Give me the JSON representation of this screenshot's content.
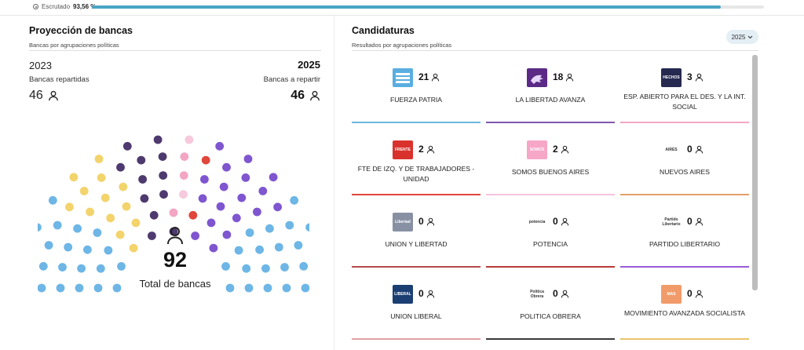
{
  "progress": {
    "label": "Escrutado",
    "value_text": "93,56 %",
    "value": 0.9356
  },
  "left": {
    "title": "Proyección de bancas",
    "subtitle": "Bancas por agrupaciones políticas",
    "year_prev": "2023",
    "year_next": "2025",
    "label_prev": "Bancas repartidas",
    "label_next": "Bancas a repartir",
    "count_prev": "46",
    "count_next": "46",
    "total": "92",
    "total_label": "Total de bancas"
  },
  "right": {
    "title": "Candidaturas",
    "subtitle": "Resultados por agrupaciones políticas",
    "year_select": "2025"
  },
  "parties": [
    {
      "name": "FUERZA PATRIA",
      "seats": "21",
      "color": "#6db6e0",
      "logo_bg": "#5aaee0",
      "logo": "stripes"
    },
    {
      "name": "LA LIBERTAD AVANZA",
      "seats": "18",
      "color": "#7f56b0",
      "logo_bg": "#5b2a86",
      "logo": "lion"
    },
    {
      "name": "ESP. ABIERTO PARA EL DES. Y LA INT. SOCIAL",
      "seats": "3",
      "color": "#f2a6c4",
      "logo_bg": "#262a50",
      "logo": "text",
      "logo_text": "HECHOS"
    },
    {
      "name": "FTE DE IZQ. Y DE TRABAJADORES - UNIDAD",
      "seats": "2",
      "color": "#e0463c",
      "logo_bg": "#d9322c",
      "logo": "text",
      "logo_text": "FRENTE"
    },
    {
      "name": "SOMOS BUENOS AIRES",
      "seats": "2",
      "color": "#f3c3dc",
      "logo_bg": "#f6a6c6",
      "logo": "text",
      "logo_text": "SOMOS"
    },
    {
      "name": "NUEVOS AIRES",
      "seats": "0",
      "color": "#e2a06a",
      "logo_bg": "#ffffff",
      "logo": "text",
      "logo_text": "AIRES"
    },
    {
      "name": "UNION Y LIBERTAD",
      "seats": "0",
      "color": "#b34b4b",
      "logo_bg": "#8891a3",
      "logo": "text",
      "logo_text": "Libertad"
    },
    {
      "name": "POTENCIA",
      "seats": "0",
      "color": "#b73a3a",
      "logo_bg": "#ffffff",
      "logo": "text",
      "logo_text": "potencia"
    },
    {
      "name": "PARTIDO LIBERTARIO",
      "seats": "0",
      "color": "#9a5ad6",
      "logo_bg": "#ffffff",
      "logo": "text",
      "logo_text": "Partido Libertario"
    },
    {
      "name": "UNION LIBERAL",
      "seats": "0",
      "color": "#e0a0a8",
      "logo_bg": "#1c3f73",
      "logo": "text",
      "logo_text": "LIBERAL"
    },
    {
      "name": "POLITICA OBRERA",
      "seats": "0",
      "color": "#3a3a3a",
      "logo_bg": "#ffffff",
      "logo": "text",
      "logo_text": "Politica Obrera"
    },
    {
      "name": "MOVIMIENTO AVANZADA SOCIALISTA",
      "seats": "0",
      "color": "#e9c46a",
      "logo_bg": "#f19b6a",
      "logo": "text",
      "logo_text": "MAS"
    }
  ],
  "colors": {
    "light_blue": "#6db6e6",
    "yellow": "#f3d36b",
    "dark_purple": "#4e3a6e",
    "purple": "#7f56d0",
    "pink": "#f2a6c4",
    "light_pink": "#f6c9dc",
    "red": "#e0463c"
  }
}
